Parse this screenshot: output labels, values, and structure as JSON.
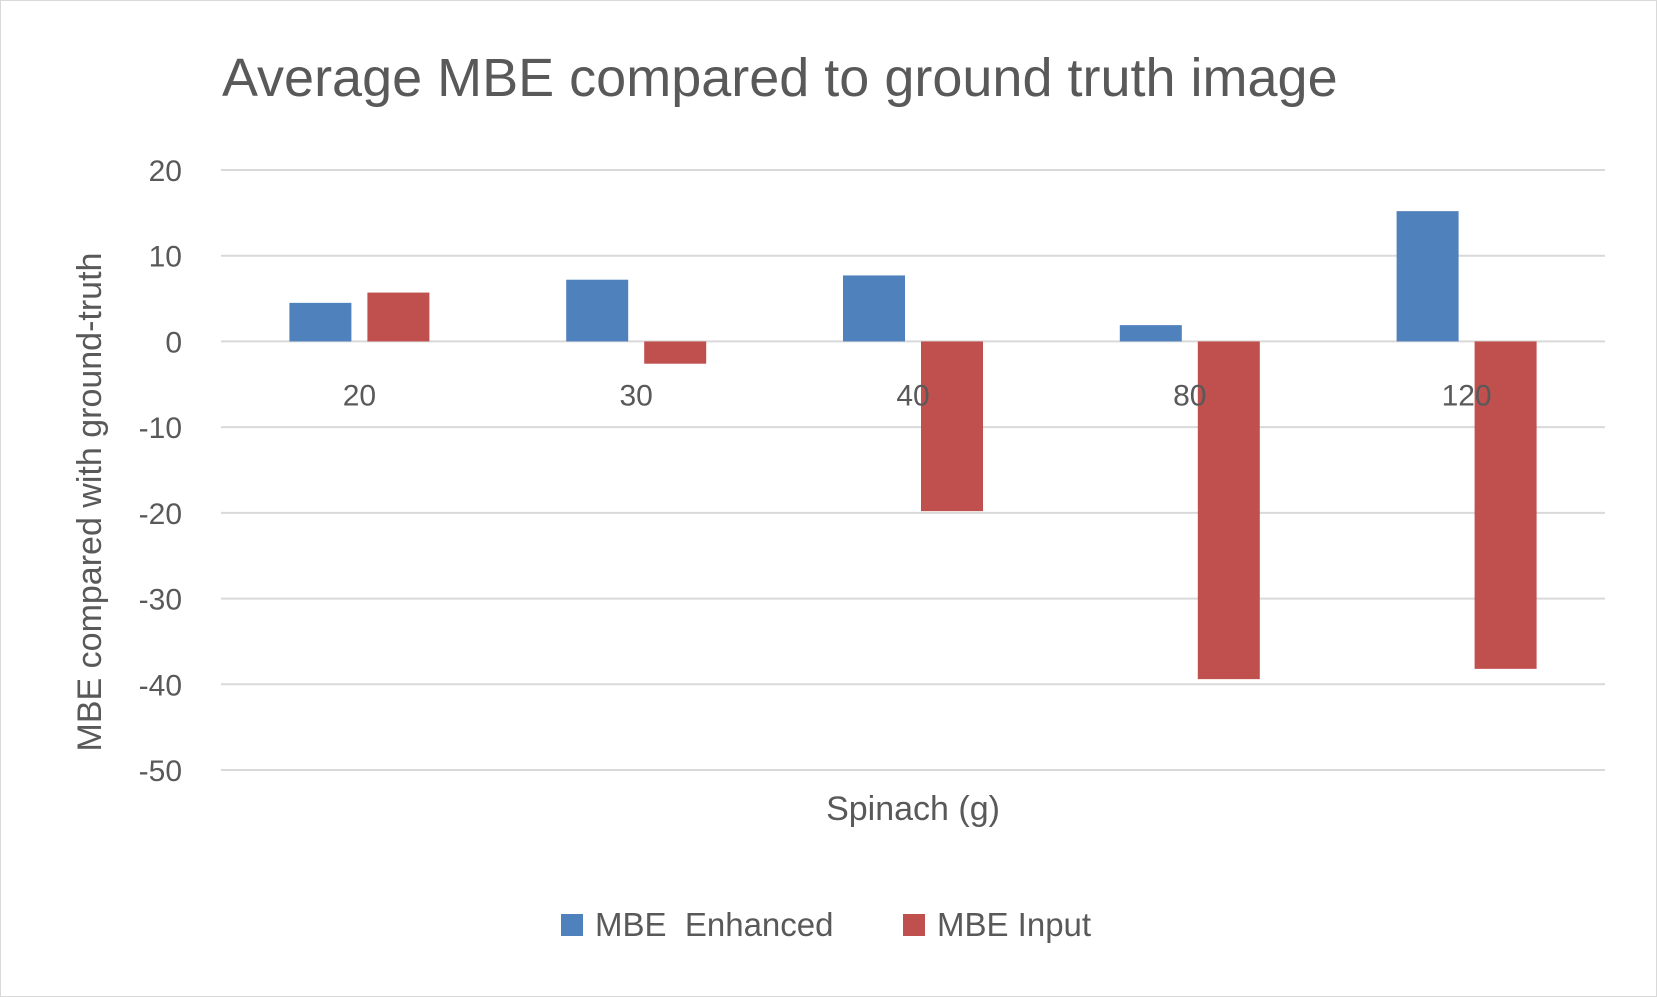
{
  "chart_data": {
    "type": "bar",
    "title": "Average MBE compared to ground truth image",
    "xlabel": "Spinach (g)",
    "ylabel": "MBE compared with ground-truth",
    "categories": [
      "20",
      "30",
      "40",
      "80",
      "120"
    ],
    "series": [
      {
        "name": "MBE  Enhanced",
        "color": "#4F81BD",
        "values": [
          4.5,
          7.2,
          7.7,
          1.9,
          15.2
        ]
      },
      {
        "name": "MBE Input",
        "color": "#C0504D",
        "values": [
          5.7,
          -2.6,
          -19.8,
          -39.4,
          -38.2
        ]
      }
    ],
    "ylim": [
      -50,
      20
    ],
    "yticks": [
      20,
      10,
      0,
      -10,
      -20,
      -30,
      -40,
      -50
    ],
    "grid": true,
    "legend_position": "bottom"
  }
}
